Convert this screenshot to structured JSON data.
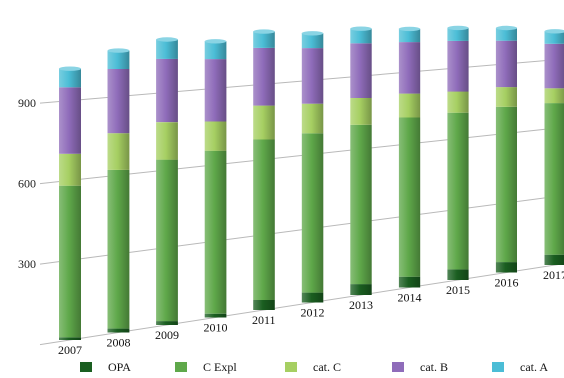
{
  "chart_data": {
    "type": "bar",
    "stacked": true,
    "categories": [
      "2007",
      "2008",
      "2009",
      "2010",
      "2011",
      "2012",
      "2013",
      "2014",
      "2015",
      "2016",
      "2017"
    ],
    "series": [
      {
        "name": "OPA",
        "color": "#1a5e20",
        "values": [
          10,
          15,
          15,
          15,
          40,
          40,
          45,
          45,
          45,
          45,
          45
        ]
      },
      {
        "name": "C Expl",
        "color": "#5fa84a",
        "values": [
          570,
          605,
          625,
          640,
          640,
          645,
          655,
          665,
          665,
          670,
          665
        ]
      },
      {
        "name": "cat. C",
        "color": "#a6cf62",
        "values": [
          120,
          140,
          145,
          115,
          135,
          120,
          110,
          100,
          90,
          85,
          65
        ]
      },
      {
        "name": "cat. B",
        "color": "#8f6cba",
        "values": [
          250,
          245,
          245,
          245,
          230,
          225,
          225,
          215,
          215,
          200,
          195
        ]
      },
      {
        "name": "cat. A",
        "color": "#4bbdd6",
        "values": [
          70,
          70,
          75,
          70,
          65,
          60,
          60,
          55,
          55,
          55,
          55
        ]
      }
    ],
    "ytick_labels": [
      "300",
      "600",
      "900"
    ],
    "yticks": [
      300,
      600,
      900
    ],
    "ylim": [
      0,
      1050
    ],
    "grid": true,
    "legend_position": "bottom"
  }
}
